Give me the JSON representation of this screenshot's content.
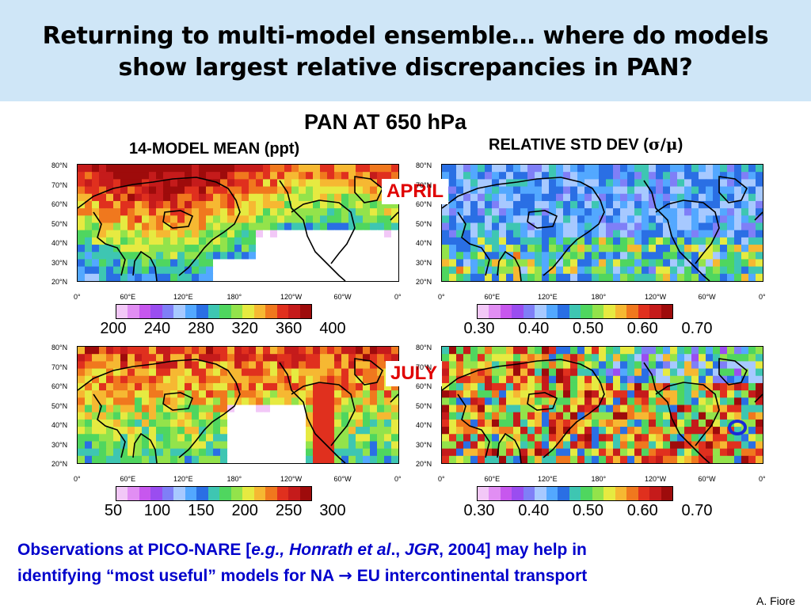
{
  "slide": {
    "title_line1": "Returning to multi-model ensemble… where do models",
    "title_line2": "show largest relative discrepancies in PAN?",
    "main_heading": "PAN AT 650 hPa",
    "left_heading": "14-MODEL MEAN  (ppt)",
    "right_heading_prefix": "RELATIVE STD DEV (",
    "right_heading_symbol": "σ/μ",
    "right_heading_suffix": ")",
    "april_label": "APRIL",
    "july_label": "JULY",
    "footer_line1_a": "Observations at PICO-NARE [",
    "footer_line1_b": "e.g., Honrath et al",
    "footer_line1_c": ".,",
    "footer_line1_d": "JGR",
    "footer_line1_e": ", 2004] may help in",
    "footer_line2_a": "identifying “most useful” models for NA",
    "footer_arrow": "→",
    "footer_line2_b": "EU intercontinental transport",
    "author": "A. Fiore"
  },
  "axes": {
    "lat_labels": [
      "80°N",
      "70°N",
      "60°N",
      "50°N",
      "40°N",
      "30°N",
      "20°N"
    ],
    "lon_labels": [
      "0°",
      "60°E",
      "120°E",
      "180°",
      "120°W",
      "60°W",
      "0°"
    ]
  },
  "colorbars": {
    "april_mean": [
      "200",
      "240",
      "280",
      "320",
      "360",
      "400"
    ],
    "july_mean": [
      "50",
      "100",
      "150",
      "200",
      "250",
      "300"
    ],
    "std_dev": [
      "0.30",
      "0.40",
      "0.50",
      "0.60",
      "0.70"
    ]
  },
  "colors": {
    "title_band": "#cfe6f7",
    "month_red": "#e00000",
    "footer_blue": "#0000cc",
    "scale": [
      "#ffffff",
      "#f2c8f7",
      "#e18ef3",
      "#c757ee",
      "#9a4df0",
      "#7f7ff7",
      "#a7c9ff",
      "#53a8ff",
      "#2a6fe4",
      "#3ec6b2",
      "#4fd65f",
      "#93e34b",
      "#e6ea41",
      "#f6b832",
      "#f0781e",
      "#e0301e",
      "#c51b1b",
      "#9e0b0b"
    ]
  }
}
